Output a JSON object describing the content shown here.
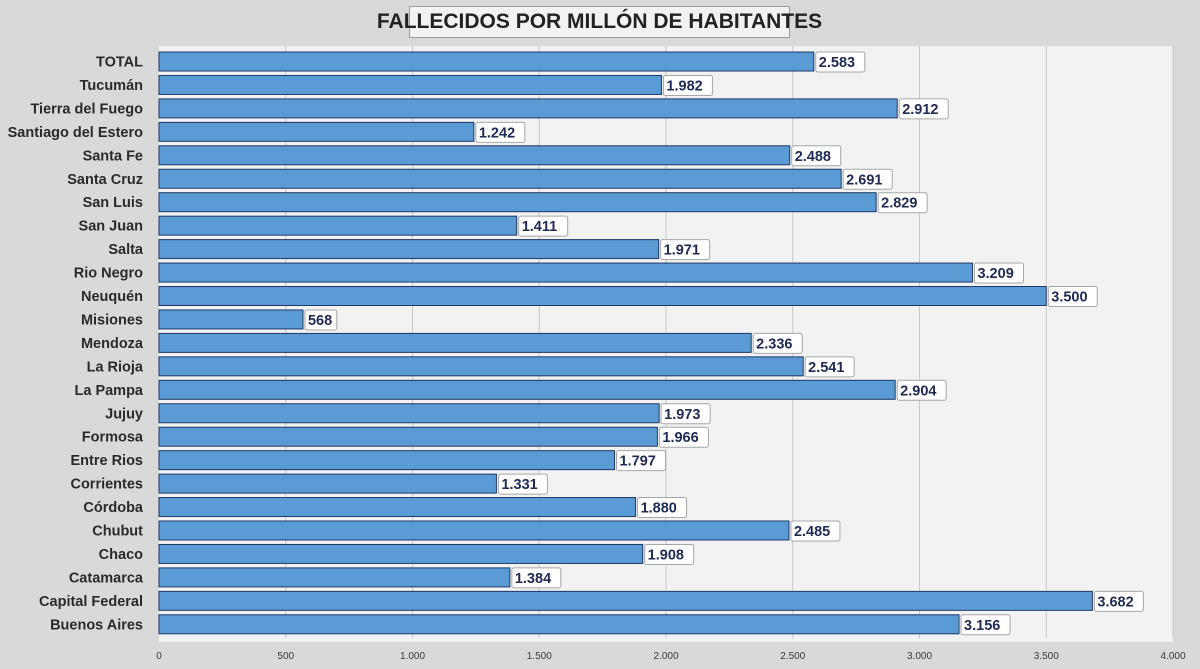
{
  "chart_data": {
    "type": "bar",
    "orientation": "horizontal",
    "title": "FALLECIDOS POR MILLÓN DE HABITANTES",
    "categories": [
      "TOTAL",
      "Tucumán",
      "Tierra del Fuego",
      "Santiago del Estero",
      "Santa Fe",
      "Santa Cruz",
      "San Luis",
      "San Juan",
      "Salta",
      "Rio Negro",
      "Neuquén",
      "Misiones",
      "Mendoza",
      "La Rioja",
      "La Pampa",
      "Jujuy",
      "Formosa",
      "Entre Rios",
      "Corrientes",
      "Córdoba",
      "Chubut",
      "Chaco",
      "Catamarca",
      "Capital Federal",
      "Buenos Aires"
    ],
    "values": [
      2583,
      1982,
      2912,
      1242,
      2488,
      2691,
      2829,
      1411,
      1971,
      3209,
      3500,
      568,
      2336,
      2541,
      2904,
      1973,
      1966,
      1797,
      1331,
      1880,
      2485,
      1908,
      1384,
      3682,
      3156
    ],
    "value_labels": [
      "2.583",
      "1.982",
      "2.912",
      "1.242",
      "2.488",
      "2.691",
      "2.829",
      "1.411",
      "1.971",
      "3.209",
      "3.500",
      "568",
      "2.336",
      "2.541",
      "2.904",
      "1.973",
      "1.966",
      "1.797",
      "1.331",
      "1.880",
      "2.485",
      "1.908",
      "1.384",
      "3.682",
      "3.156"
    ],
    "xticks": [
      0,
      500,
      1000,
      1500,
      2000,
      2500,
      3000,
      3500,
      4000
    ],
    "xtick_labels": [
      "0",
      "500",
      "1.000",
      "1.500",
      "2.000",
      "2.500",
      "3.000",
      "3.500",
      "4.000"
    ],
    "xlim": [
      0,
      4000
    ],
    "xlabel": "",
    "ylabel": "",
    "grid": "vertical",
    "legend": "none",
    "colors": {
      "bar": "#5b9bd5",
      "bar_border": "#1f3864",
      "plot_bg": "#f2f2f2",
      "page_bg": "#d9d9d9",
      "grid": "#c8c8c8",
      "label_text": "#1f2a55"
    }
  }
}
